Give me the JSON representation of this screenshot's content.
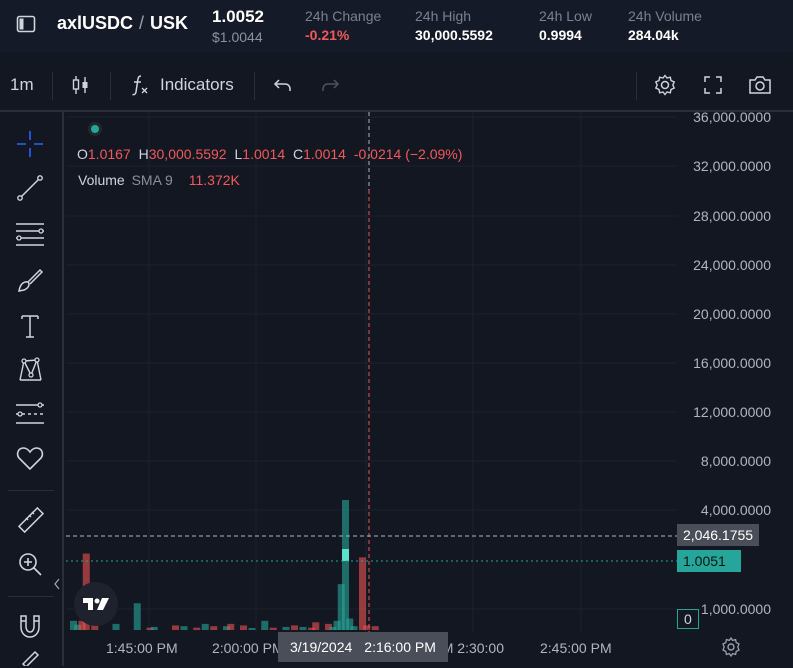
{
  "header": {
    "pair_base": "axlUSDC",
    "pair_separator": "/",
    "pair_quote": "USK",
    "price": "1.0052",
    "price_usd": "$1.0044",
    "stats": [
      {
        "label": "24h Change",
        "value": "-0.21%",
        "tone": "negative"
      },
      {
        "label": "24h High",
        "value": "30,000.5592",
        "tone": "neutral"
      },
      {
        "label": "24h Low",
        "value": "0.9994",
        "tone": "neutral"
      },
      {
        "label": "24h Volume",
        "value": "284.04k",
        "tone": "neutral"
      }
    ]
  },
  "toolbar": {
    "interval": "1m",
    "indicators_label": "Indicators",
    "icons": [
      "candles-icon",
      "function-icon",
      "undo-icon",
      "redo-icon",
      "settings-icon",
      "fullscreen-icon",
      "camera-icon"
    ]
  },
  "left_tools": [
    "crosshair-icon",
    "trend-line-icon",
    "fib-lines-icon",
    "brush-icon",
    "text-icon",
    "pattern-icon",
    "forecast-icon",
    "heart-icon",
    "ruler-icon",
    "zoom-in-icon",
    "magnet-icon"
  ],
  "legend": {
    "o_label": "O",
    "o_value": "1.0167",
    "h_label": "H",
    "h_value": "30,000.5592",
    "l_label": "L",
    "l_value": "1.0014",
    "c_label": "C",
    "c_value": "1.0014",
    "change": "-0.0214 (−2.09%)",
    "volume_label": "Volume",
    "volume_ma": "SMA 9",
    "volume_value": "11.372K"
  },
  "price_axis": {
    "ticks": [
      "36,000.0000",
      "32,000.0000",
      "28,000.0000",
      "24,000.0000",
      "20,000.0000",
      "16,000.0000",
      "12,000.0000",
      "8,000.0000",
      "4,000.0000",
      "1,000.0000"
    ],
    "crosshair_value": "2,046.1755",
    "last_price": "1.0051",
    "volume_last": "0"
  },
  "time_axis": {
    "ticks": [
      "1:45:00 PM",
      "2:00:00 PM",
      "2:30:00 PM",
      "2:45:00 PM"
    ],
    "crosshair_date": "3/19/2024",
    "crosshair_time": "2:16:00 PM"
  },
  "chart_data": {
    "type": "bar",
    "title": "",
    "ylim": [
      0,
      36000
    ],
    "up_color": "#26a69a",
    "down_color": "#ef5350",
    "volume_bars": [
      {
        "x": 0,
        "v": 0.12,
        "up": true
      },
      {
        "x": 1,
        "v": 0.07,
        "up": true
      },
      {
        "x": 2,
        "v": 0.12,
        "up": false
      },
      {
        "x": 3,
        "v": 1.0,
        "up": false
      },
      {
        "x": 5,
        "v": 0.2,
        "up": false
      },
      {
        "x": 10,
        "v": 0.08,
        "up": true
      },
      {
        "x": 15,
        "v": 0.35,
        "up": true
      },
      {
        "x": 18,
        "v": 0.03,
        "up": false
      },
      {
        "x": 19,
        "v": 0.04,
        "up": true
      },
      {
        "x": 24,
        "v": 0.06,
        "up": false
      },
      {
        "x": 26,
        "v": 0.05,
        "up": true
      },
      {
        "x": 29,
        "v": 0.03,
        "up": false
      },
      {
        "x": 31,
        "v": 0.08,
        "up": true
      },
      {
        "x": 33,
        "v": 0.05,
        "up": false
      },
      {
        "x": 36,
        "v": 0.05,
        "up": true
      },
      {
        "x": 37,
        "v": 0.08,
        "up": false
      },
      {
        "x": 40,
        "v": 0.06,
        "up": false
      },
      {
        "x": 42,
        "v": 0.02,
        "up": true
      },
      {
        "x": 45,
        "v": 0.12,
        "up": true
      },
      {
        "x": 47,
        "v": 0.03,
        "up": false
      },
      {
        "x": 50,
        "v": 0.04,
        "up": true
      },
      {
        "x": 52,
        "v": 0.06,
        "up": false
      },
      {
        "x": 54,
        "v": 0.04,
        "up": true
      },
      {
        "x": 56,
        "v": 0.03,
        "up": false
      },
      {
        "x": 57,
        "v": 0.1,
        "up": false
      },
      {
        "x": 60,
        "v": 0.08,
        "up": false
      },
      {
        "x": 61,
        "v": 0.04,
        "up": true
      },
      {
        "x": 62,
        "v": 0.12,
        "up": true
      },
      {
        "x": 63,
        "v": 0.6,
        "up": true
      },
      {
        "x": 64,
        "v": 1.7,
        "up": true
      },
      {
        "x": 65,
        "v": 0.15,
        "up": true
      },
      {
        "x": 66,
        "v": 0.05,
        "up": true
      },
      {
        "x": 68,
        "v": 0.95,
        "up": false
      },
      {
        "x": 69,
        "v": 0.06,
        "up": false
      },
      {
        "x": 71,
        "v": 0.05,
        "up": false
      }
    ],
    "volume_max": 1.7
  }
}
